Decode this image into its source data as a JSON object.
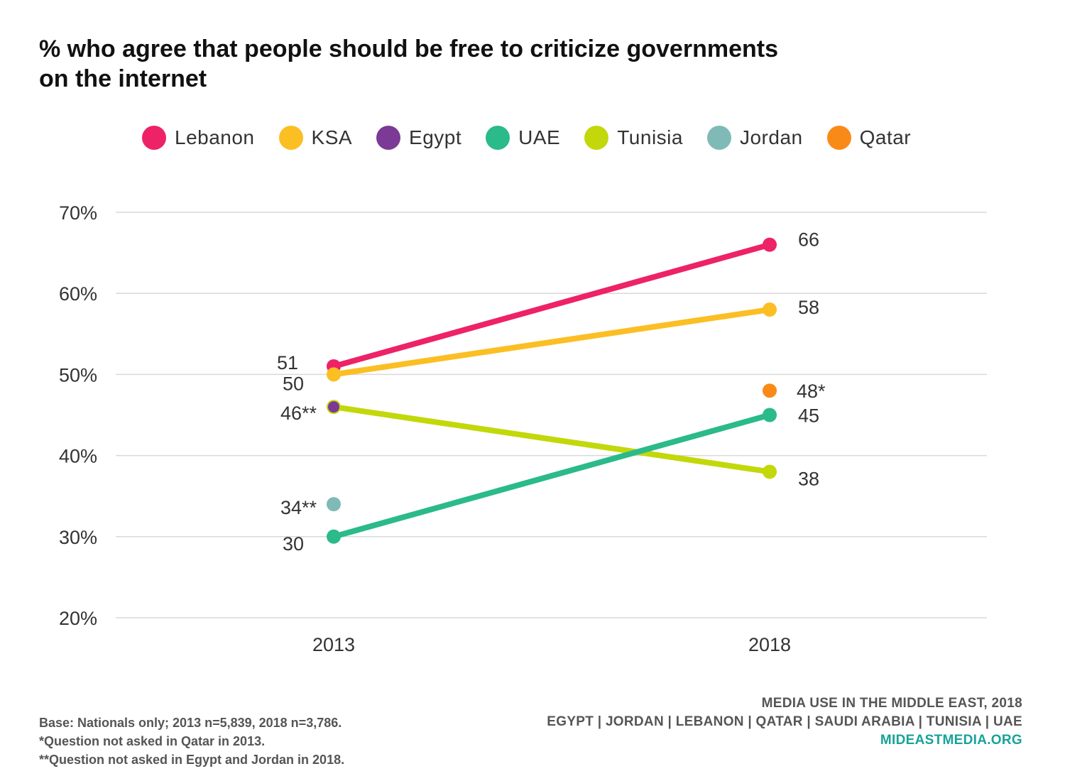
{
  "title_line1": "% who agree that people should be free to criticize governments",
  "title_line2": "on the internet",
  "legend": [
    {
      "name": "Lebanon",
      "color": "#ee2266"
    },
    {
      "name": "KSA",
      "color": "#fbbf24"
    },
    {
      "name": "Egypt",
      "color": "#7b3a96"
    },
    {
      "name": "UAE",
      "color": "#2bba8a"
    },
    {
      "name": "Tunisia",
      "color": "#c2d80a"
    },
    {
      "name": "Jordan",
      "color": "#7fbab6"
    },
    {
      "name": "Qatar",
      "color": "#fa8a18"
    }
  ],
  "chart_data": {
    "type": "line",
    "title": "% who agree that people should be free to criticize governments on the internet",
    "categories": [
      "2013",
      "2018"
    ],
    "y_ticks": [
      "70%",
      "60%",
      "50%",
      "40%",
      "30%",
      "20%"
    ],
    "ylim": [
      20,
      70
    ],
    "grid": true,
    "legend_position": "top",
    "series": [
      {
        "name": "Lebanon",
        "color": "#ee2266",
        "values": [
          51,
          66
        ],
        "labels": [
          "51",
          "66"
        ]
      },
      {
        "name": "KSA",
        "color": "#fbbf24",
        "values": [
          50,
          58
        ],
        "labels": [
          "50",
          "58"
        ]
      },
      {
        "name": "Tunisia",
        "color": "#c2d80a",
        "values": [
          46,
          38
        ],
        "labels": [
          "46**",
          "38"
        ]
      },
      {
        "name": "Egypt",
        "color": "#7b3a96",
        "values": [
          46,
          null
        ],
        "labels": [
          "",
          ""
        ]
      },
      {
        "name": "UAE",
        "color": "#2bba8a",
        "values": [
          30,
          45
        ],
        "labels": [
          "30",
          "45"
        ]
      },
      {
        "name": "Jordan",
        "color": "#7fbab6",
        "values": [
          34,
          null
        ],
        "labels": [
          "34**",
          ""
        ]
      },
      {
        "name": "Qatar",
        "color": "#fa8a18",
        "values": [
          null,
          48
        ],
        "labels": [
          "",
          "48*"
        ]
      }
    ]
  },
  "footer": {
    "base": "Base: Nationals only; 2013 n=5,839, 2018 n=3,786.",
    "note1": "*Question not asked in Qatar in 2013.",
    "note2": "**Question not asked in Egypt and Jordan in 2018.",
    "source_title": "MEDIA USE IN THE MIDDLE EAST, 2018",
    "countries": "EGYPT | JORDAN | LEBANON | QATAR | SAUDI ARABIA | TUNISIA | UAE",
    "url": "MIDEASTMEDIA.ORG"
  }
}
